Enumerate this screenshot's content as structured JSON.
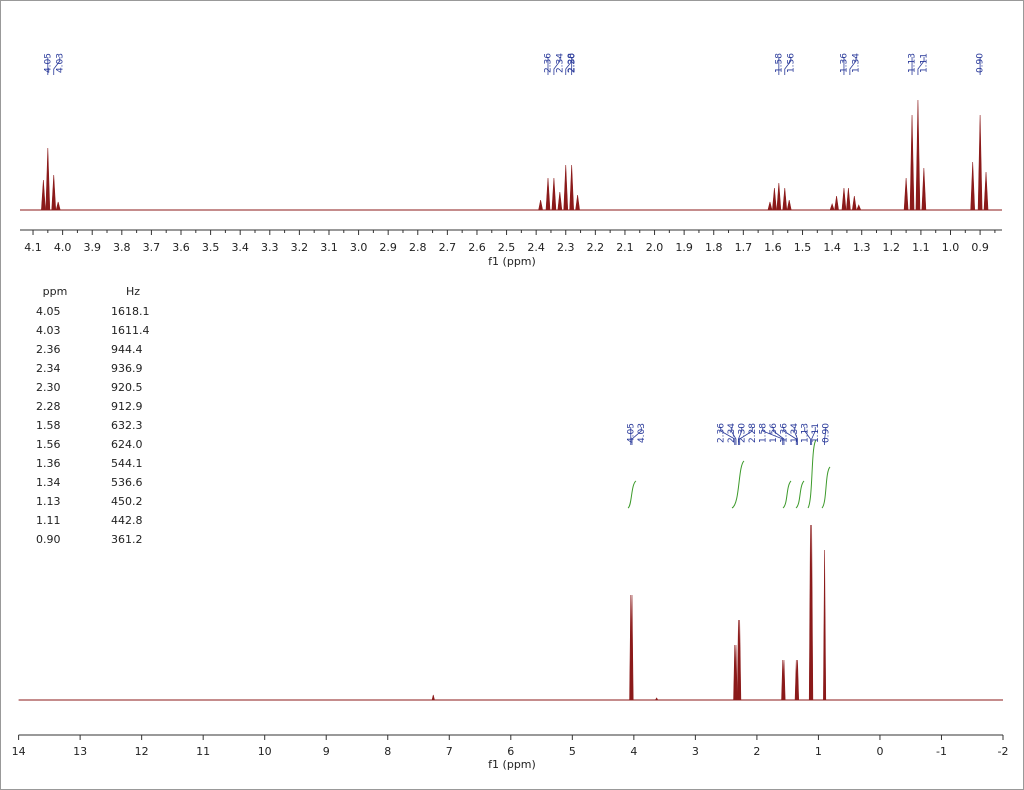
{
  "chart_data": [
    {
      "type": "nmr",
      "xlabel": "f1 (ppm)",
      "xlim": [
        4.144,
        0.826
      ],
      "ylim": [
        0,
        120
      ],
      "color": "#8b1a1a",
      "xticks": [
        4.1,
        {
          "value": 4.0,
          "label": "4.0"
        },
        3.9,
        3.8,
        3.7,
        3.6,
        3.5,
        3.4,
        3.3,
        3.2,
        3.1,
        {
          "value": 3.0,
          "label": "3.0"
        },
        2.9,
        2.8,
        2.7,
        2.6,
        2.5,
        2.4,
        2.3,
        2.2,
        2.1,
        {
          "value": 2.0,
          "label": "2.0"
        },
        1.9,
        1.8,
        1.7,
        1.6,
        1.5,
        1.4,
        1.3,
        1.2,
        1.1,
        {
          "value": 1.0,
          "label": "1.0"
        },
        0.9
      ],
      "x": [
        4.065,
        4.05,
        4.03,
        4.015,
        2.385,
        2.36,
        2.34,
        2.32,
        2.3,
        2.28,
        2.26,
        1.61,
        1.595,
        1.58,
        1.56,
        1.545,
        1.4,
        1.385,
        1.36,
        1.345,
        1.325,
        1.31,
        1.15,
        1.13,
        1.11,
        1.09,
        0.925,
        0.9,
        0.88
      ],
      "values": [
        30,
        62,
        35,
        8,
        10,
        32,
        32,
        18,
        45,
        45,
        15,
        8,
        22,
        27,
        22,
        10,
        6,
        14,
        22,
        22,
        14,
        5,
        32,
        95,
        110,
        42,
        48,
        95,
        38
      ],
      "peak_labels": [
        "4.05",
        "4.03",
        "2.36",
        "2.34",
        "2.30",
        "2.28",
        "1.58",
        "1.56",
        "1.36",
        "1.34",
        "1.13",
        "1.11",
        "0.90"
      ]
    },
    {
      "type": "nmr",
      "xlabel": "f1 (ppm)",
      "xlim": [
        14,
        -2
      ],
      "ylim": [
        0,
        200
      ],
      "color": "#8b1a1a",
      "xticks": [
        14,
        13,
        12,
        11,
        10,
        9,
        8,
        7,
        6,
        5,
        4,
        3,
        2,
        1,
        0,
        -1,
        -2
      ],
      "x": [
        7.26,
        3.63,
        4.05,
        4.03,
        2.36,
        2.34,
        2.3,
        2.28,
        1.58,
        1.56,
        1.36,
        1.34,
        1.13,
        1.11,
        0.9
      ],
      "values": [
        5,
        2,
        105,
        105,
        55,
        55,
        80,
        80,
        40,
        40,
        40,
        40,
        175,
        175,
        150
      ],
      "peak_labels": [
        "4.05",
        "4.03",
        "2.36",
        "2.34",
        "2.30",
        "2.28",
        "1.58",
        "1.56",
        "1.36",
        "1.34",
        "1.13",
        "1.11",
        "0.90"
      ]
    }
  ],
  "table": {
    "headers": [
      "ppm",
      "Hz"
    ],
    "rows": [
      [
        "4.05",
        "1618.1"
      ],
      [
        "4.03",
        "1611.4"
      ],
      [
        "2.36",
        "944.4"
      ],
      [
        "2.34",
        "936.9"
      ],
      [
        "2.30",
        "920.5"
      ],
      [
        "2.28",
        "912.9"
      ],
      [
        "1.58",
        "632.3"
      ],
      [
        "1.56",
        "624.0"
      ],
      [
        "1.36",
        "544.1"
      ],
      [
        "1.34",
        "536.6"
      ],
      [
        "1.13",
        "450.2"
      ],
      [
        "1.11",
        "442.8"
      ],
      [
        "0.90",
        "361.2"
      ]
    ]
  }
}
